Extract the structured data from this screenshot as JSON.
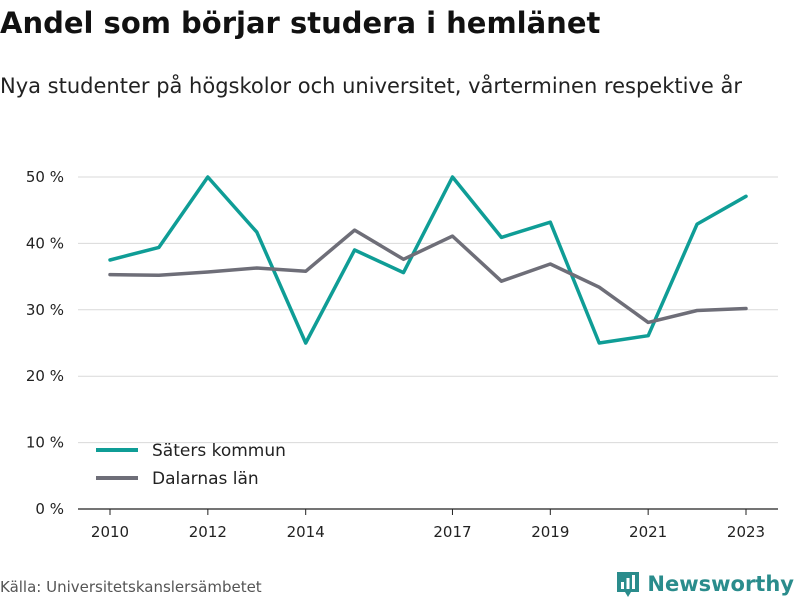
{
  "header": {
    "title": "Andel som börjar studera i hemlänet",
    "subtitle": "Nya studenter på högskolor och universitet, vårterminen respektive år"
  },
  "footer": {
    "source": "Källa: Universitetskanslersämbetet",
    "brand": "Newsworthy",
    "brand_icon": "bar-chart-flag-icon",
    "brand_color": "#2a8c8c"
  },
  "chart_data": {
    "type": "line",
    "title": "Andel som börjar studera i hemlänet",
    "subtitle": "Nya studenter på högskolor och universitet, vårterminen respektive år",
    "x": [
      2010,
      2011,
      2012,
      2013,
      2014,
      2015,
      2016,
      2017,
      2018,
      2019,
      2020,
      2021,
      2022,
      2023
    ],
    "x_ticks": [
      2010,
      2012,
      2014,
      2017,
      2019,
      2021,
      2023
    ],
    "y_ticks": [
      0,
      10,
      20,
      30,
      40,
      50
    ],
    "y_tick_labels": [
      "0 %",
      "10 %",
      "20 %",
      "30 %",
      "40 %",
      "50 %"
    ],
    "xlim": [
      2010,
      2023
    ],
    "ylim": [
      0,
      50
    ],
    "grid": true,
    "legend_position": "bottom-left",
    "series": [
      {
        "name": "Säters kommun",
        "color": "#0f9d96",
        "values": [
          37.5,
          39.4,
          50.0,
          41.7,
          25.0,
          39.0,
          35.6,
          50.0,
          40.9,
          43.2,
          25.0,
          26.1,
          42.9,
          47.1
        ]
      },
      {
        "name": "Dalarnas län",
        "color": "#6e6e78",
        "values": [
          35.3,
          35.2,
          35.7,
          36.3,
          35.8,
          42.0,
          37.6,
          41.1,
          34.3,
          36.9,
          33.4,
          28.1,
          29.9,
          30.2
        ]
      }
    ]
  }
}
